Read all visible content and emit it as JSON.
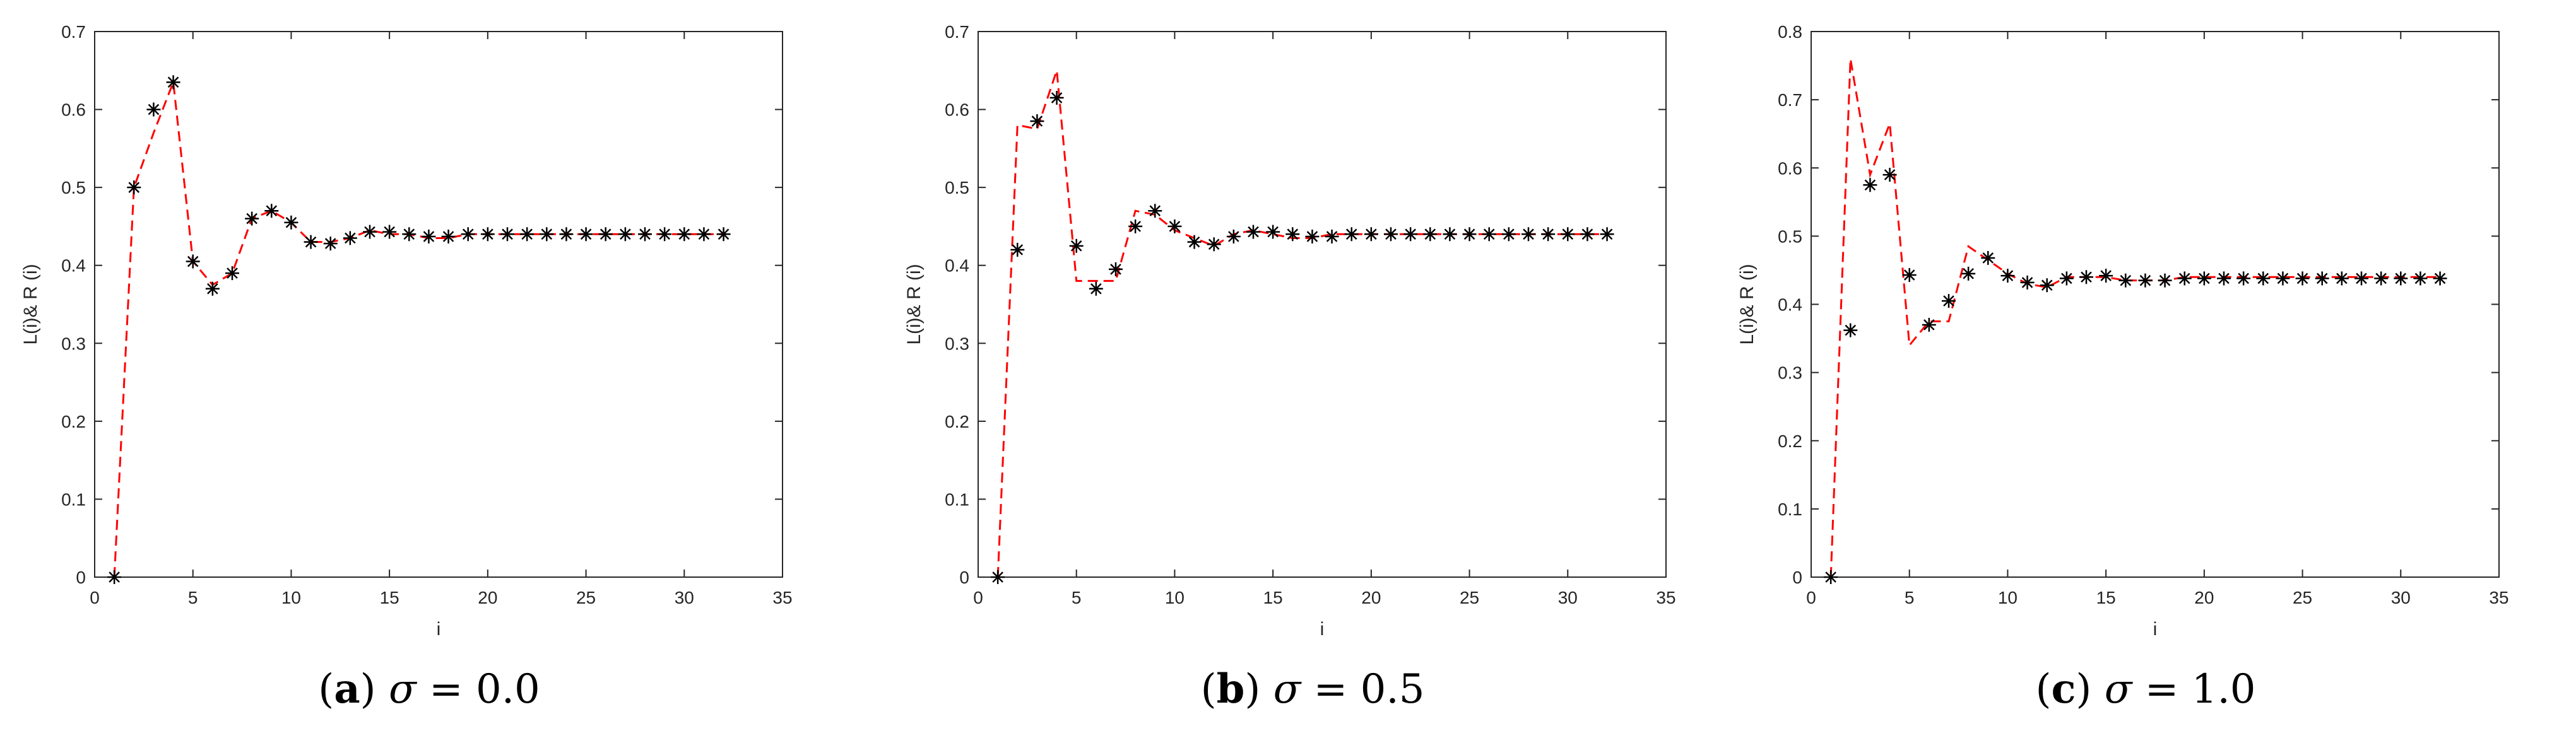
{
  "chart_data": [
    {
      "type": "line",
      "caption": {
        "tag": "a",
        "symbol": "σ",
        "eq": "=",
        "value": "0.0"
      },
      "xlabel": "i",
      "ylabel": "L(i)& R (i)",
      "xlim": [
        0,
        35
      ],
      "ylim": [
        0,
        0.7
      ],
      "xticks": [
        "0",
        "5",
        "10",
        "15",
        "20",
        "25",
        "30",
        "35"
      ],
      "yticks": [
        "0",
        "0.1",
        "0.2",
        "0.3",
        "0.4",
        "0.5",
        "0.6",
        "0.7"
      ],
      "grid": false,
      "series": [
        {
          "style": "dashed-line",
          "color": "#ff0000",
          "x": [
            1,
            2,
            3,
            4,
            5,
            6,
            7,
            8,
            9,
            10,
            11,
            12,
            13,
            14,
            15,
            16,
            17,
            18,
            19,
            20,
            21,
            22,
            23,
            24,
            25,
            26,
            27,
            28,
            29,
            30,
            31,
            32
          ],
          "y": [
            0,
            0.5,
            0.57,
            0.635,
            0.405,
            0.375,
            0.39,
            0.46,
            0.47,
            0.455,
            0.43,
            0.43,
            0.435,
            0.445,
            0.44,
            0.44,
            0.435,
            0.435,
            0.44,
            0.44,
            0.44,
            0.44,
            0.44,
            0.44,
            0.44,
            0.44,
            0.44,
            0.44,
            0.44,
            0.44,
            0.44,
            0.44
          ]
        },
        {
          "style": "asterisk-markers",
          "color": "#000000",
          "x": [
            1,
            2,
            3,
            4,
            5,
            6,
            7,
            8,
            9,
            10,
            11,
            12,
            13,
            14,
            15,
            16,
            17,
            18,
            19,
            20,
            21,
            22,
            23,
            24,
            25,
            26,
            27,
            28,
            29,
            30,
            31,
            32
          ],
          "y": [
            0,
            0.5,
            0.6,
            0.635,
            0.405,
            0.37,
            0.39,
            0.46,
            0.47,
            0.455,
            0.43,
            0.428,
            0.435,
            0.443,
            0.443,
            0.44,
            0.437,
            0.437,
            0.44,
            0.44,
            0.44,
            0.44,
            0.44,
            0.44,
            0.44,
            0.44,
            0.44,
            0.44,
            0.44,
            0.44,
            0.44,
            0.44
          ]
        }
      ]
    },
    {
      "type": "line",
      "caption": {
        "tag": "b",
        "symbol": "σ",
        "eq": "=",
        "value": "0.5"
      },
      "xlabel": "i",
      "ylabel": "L(i)& R (i)",
      "xlim": [
        0,
        35
      ],
      "ylim": [
        0,
        0.7
      ],
      "xticks": [
        "0",
        "5",
        "10",
        "15",
        "20",
        "25",
        "30",
        "35"
      ],
      "yticks": [
        "0",
        "0.1",
        "0.2",
        "0.3",
        "0.4",
        "0.5",
        "0.6",
        "0.7"
      ],
      "grid": false,
      "series": [
        {
          "style": "dashed-line",
          "color": "#ff0000",
          "x": [
            1,
            2,
            3,
            4,
            5,
            6,
            7,
            8,
            9,
            10,
            11,
            12,
            13,
            14,
            15,
            16,
            17,
            18,
            19,
            20,
            21,
            22,
            23,
            24,
            25,
            26,
            27,
            28,
            29,
            30,
            31,
            32
          ],
          "y": [
            0,
            0.58,
            0.575,
            0.65,
            0.38,
            0.38,
            0.38,
            0.47,
            0.465,
            0.445,
            0.435,
            0.425,
            0.44,
            0.445,
            0.44,
            0.435,
            0.435,
            0.44,
            0.44,
            0.44,
            0.44,
            0.44,
            0.44,
            0.44,
            0.44,
            0.44,
            0.44,
            0.44,
            0.44,
            0.44,
            0.44,
            0.44
          ]
        },
        {
          "style": "asterisk-markers",
          "color": "#000000",
          "x": [
            1,
            2,
            3,
            4,
            5,
            6,
            7,
            8,
            9,
            10,
            11,
            12,
            13,
            14,
            15,
            16,
            17,
            18,
            19,
            20,
            21,
            22,
            23,
            24,
            25,
            26,
            27,
            28,
            29,
            30,
            31,
            32
          ],
          "y": [
            0,
            0.42,
            0.585,
            0.615,
            0.425,
            0.37,
            0.395,
            0.45,
            0.47,
            0.45,
            0.43,
            0.427,
            0.437,
            0.443,
            0.443,
            0.44,
            0.437,
            0.437,
            0.44,
            0.44,
            0.44,
            0.44,
            0.44,
            0.44,
            0.44,
            0.44,
            0.44,
            0.44,
            0.44,
            0.44,
            0.44,
            0.44
          ]
        }
      ]
    },
    {
      "type": "line",
      "caption": {
        "tag": "c",
        "symbol": "σ",
        "eq": "=",
        "value": "1.0"
      },
      "xlabel": "i",
      "ylabel": "L(i)& R (i)",
      "xlim": [
        0,
        35
      ],
      "ylim": [
        0,
        0.8
      ],
      "xticks": [
        "0",
        "5",
        "10",
        "15",
        "20",
        "25",
        "30",
        "35"
      ],
      "yticks": [
        "0",
        "0.1",
        "0.2",
        "0.3",
        "0.4",
        "0.5",
        "0.6",
        "0.7",
        "0.8"
      ],
      "grid": false,
      "series": [
        {
          "style": "dashed-line",
          "color": "#ff0000",
          "x": [
            1,
            2,
            3,
            4,
            5,
            6,
            7,
            8,
            9,
            10,
            11,
            12,
            13,
            14,
            15,
            16,
            17,
            18,
            19,
            20,
            21,
            22,
            23,
            24,
            25,
            26,
            27,
            28,
            29,
            30,
            31,
            32
          ],
          "y": [
            0,
            0.76,
            0.59,
            0.665,
            0.34,
            0.375,
            0.375,
            0.485,
            0.465,
            0.445,
            0.43,
            0.425,
            0.44,
            0.44,
            0.44,
            0.435,
            0.435,
            0.435,
            0.44,
            0.44,
            0.44,
            0.44,
            0.44,
            0.44,
            0.44,
            0.44,
            0.44,
            0.44,
            0.44,
            0.44,
            0.44,
            0.44
          ]
        },
        {
          "style": "asterisk-markers",
          "color": "#000000",
          "x": [
            1,
            2,
            3,
            4,
            5,
            6,
            7,
            8,
            9,
            10,
            11,
            12,
            13,
            14,
            15,
            16,
            17,
            18,
            19,
            20,
            21,
            22,
            23,
            24,
            25,
            26,
            27,
            28,
            29,
            30,
            31,
            32
          ],
          "y": [
            0,
            0.362,
            0.575,
            0.59,
            0.443,
            0.37,
            0.405,
            0.445,
            0.468,
            0.442,
            0.432,
            0.428,
            0.438,
            0.44,
            0.442,
            0.435,
            0.435,
            0.435,
            0.438,
            0.438,
            0.438,
            0.438,
            0.438,
            0.438,
            0.438,
            0.438,
            0.438,
            0.438,
            0.438,
            0.438,
            0.438,
            0.438
          ]
        }
      ]
    }
  ]
}
